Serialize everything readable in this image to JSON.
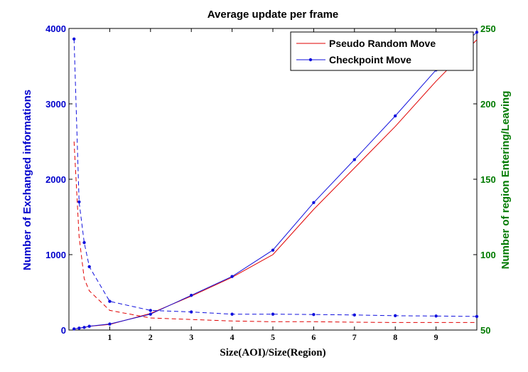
{
  "chart_data": {
    "type": "line",
    "title": "Average update per frame",
    "xlabel": "Size(AOI)/Size(Region)",
    "ylabel_left": "Number of Exchanged informations",
    "ylabel_right": "Number of region Entering/Leaving",
    "xlim": [
      0,
      10
    ],
    "ylim_left": [
      0,
      4000
    ],
    "ylim_right": [
      50,
      250
    ],
    "x_ticks": [
      "1",
      "2",
      "3",
      "4",
      "5",
      "6",
      "7",
      "8",
      "9"
    ],
    "y_left_ticks": [
      "0",
      "1000",
      "2000",
      "3000",
      "4000"
    ],
    "y_right_ticks": [
      "50",
      "100",
      "150",
      "200",
      "250"
    ],
    "grid": false,
    "legend_position": "top-right",
    "legend": [
      "Pseudo Random Move",
      "Checkpoint Move"
    ],
    "colors": {
      "pseudo": "#e00000",
      "checkpoint": "#1010dd",
      "left_axis": "#0000cc",
      "right_axis": "#007a00"
    },
    "series": [
      {
        "name": "Pseudo Random Move",
        "kind": "exchanged_informations",
        "axis": "left",
        "style": "solid",
        "x": [
          0.125,
          0.25,
          0.375,
          0.5,
          1,
          2,
          3,
          4,
          5,
          6,
          7,
          8,
          9,
          10
        ],
        "y": [
          15,
          25,
          35,
          50,
          75,
          220,
          450,
          700,
          1000,
          1600,
          2150,
          2700,
          3300,
          3850
        ]
      },
      {
        "name": "Checkpoint Move",
        "kind": "exchanged_informations",
        "axis": "left",
        "style": "solid",
        "markers": true,
        "x": [
          0.125,
          0.25,
          0.375,
          0.5,
          1,
          2,
          3,
          4,
          5,
          6,
          7,
          8,
          9,
          10
        ],
        "y": [
          15,
          25,
          35,
          50,
          80,
          210,
          460,
          710,
          1060,
          1690,
          2260,
          2840,
          3450,
          3950
        ]
      },
      {
        "name": "Pseudo Random Move",
        "kind": "region_entering_leaving",
        "axis": "right",
        "style": "dashed",
        "x": [
          0.125,
          0.25,
          0.375,
          0.5,
          1,
          2,
          3,
          4,
          5,
          6,
          7,
          8,
          9,
          10
        ],
        "y": [
          175,
          112,
          84,
          76,
          63,
          58,
          57,
          56,
          55.5,
          55.5,
          55.2,
          55,
          55,
          55
        ]
      },
      {
        "name": "Checkpoint Move",
        "kind": "region_entering_leaving",
        "axis": "right",
        "style": "dashed",
        "markers": true,
        "x": [
          0.125,
          0.25,
          0.375,
          0.5,
          1,
          2,
          3,
          4,
          5,
          6,
          7,
          8,
          9,
          10
        ],
        "y": [
          243,
          135,
          108,
          92,
          69,
          63,
          62,
          60.5,
          60.5,
          60.3,
          60,
          59.5,
          59.3,
          59
        ]
      }
    ]
  }
}
